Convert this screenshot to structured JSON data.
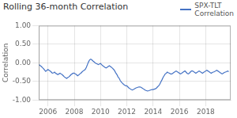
{
  "chart_data": {
    "type": "line",
    "title": "Rolling 36-month Correlation",
    "ylabel": "Correlation",
    "x": [
      2005.33,
      2005.42,
      2005.5,
      2005.58,
      2005.67,
      2005.75,
      2005.83,
      2005.92,
      2006.0,
      2006.08,
      2006.17,
      2006.25,
      2006.33,
      2006.42,
      2006.5,
      2006.58,
      2006.67,
      2006.75,
      2006.83,
      2006.92,
      2007.0,
      2007.08,
      2007.17,
      2007.25,
      2007.33,
      2007.42,
      2007.5,
      2007.58,
      2007.67,
      2007.75,
      2007.83,
      2007.92,
      2008.0,
      2008.08,
      2008.17,
      2008.25,
      2008.33,
      2008.42,
      2008.5,
      2008.58,
      2008.67,
      2008.75,
      2008.83,
      2008.92,
      2009.0,
      2009.08,
      2009.17,
      2009.25,
      2009.33,
      2009.42,
      2009.5,
      2009.58,
      2009.67,
      2009.75,
      2009.83,
      2009.92,
      2010.0,
      2010.08,
      2010.17,
      2010.25,
      2010.33,
      2010.42,
      2010.5,
      2010.58,
      2010.67,
      2010.75,
      2010.83,
      2010.92,
      2011.0,
      2011.08,
      2011.17,
      2011.25,
      2011.33,
      2011.42,
      2011.5,
      2011.58,
      2011.67,
      2011.75,
      2011.83,
      2011.92,
      2012.0,
      2012.08,
      2012.17,
      2012.25,
      2012.33,
      2012.42,
      2012.5,
      2012.58,
      2012.67,
      2012.75,
      2012.83,
      2012.92,
      2013.0,
      2013.08,
      2013.17,
      2013.25,
      2013.33,
      2013.42,
      2013.5,
      2013.58,
      2013.67,
      2013.75,
      2013.83,
      2013.92,
      2014.0,
      2014.08,
      2014.17,
      2014.25,
      2014.33,
      2014.42,
      2014.5,
      2014.58,
      2014.67,
      2014.75,
      2014.83,
      2014.92,
      2015.0,
      2015.08,
      2015.17,
      2015.25,
      2015.33,
      2015.42,
      2015.5,
      2015.58,
      2015.67,
      2015.75,
      2015.83,
      2015.92,
      2016.0,
      2016.08,
      2016.17,
      2016.25,
      2016.33,
      2016.42,
      2016.5,
      2016.58,
      2016.67,
      2016.75,
      2016.83,
      2016.92,
      2017.0,
      2017.08,
      2017.17,
      2017.25,
      2017.33,
      2017.42,
      2017.5,
      2017.58,
      2017.67,
      2017.75,
      2017.83,
      2017.92,
      2018.0,
      2018.08,
      2018.17,
      2018.25,
      2018.33,
      2018.42,
      2018.5,
      2018.58,
      2018.67,
      2018.75,
      2018.83,
      2018.92,
      2019.0,
      2019.08,
      2019.17,
      2019.25,
      2019.33,
      2019.42,
      2019.5,
      2019.58,
      2019.67,
      2019.75
    ],
    "series": [
      {
        "name": "SPX-TLT\nCorrelation",
        "color": "#4472C4",
        "values": [
          -0.05,
          -0.08,
          -0.1,
          -0.13,
          -0.16,
          -0.2,
          -0.23,
          -0.2,
          -0.18,
          -0.2,
          -0.22,
          -0.25,
          -0.28,
          -0.27,
          -0.25,
          -0.28,
          -0.3,
          -0.32,
          -0.3,
          -0.28,
          -0.3,
          -0.32,
          -0.35,
          -0.38,
          -0.4,
          -0.42,
          -0.4,
          -0.38,
          -0.35,
          -0.32,
          -0.3,
          -0.28,
          -0.28,
          -0.3,
          -0.32,
          -0.35,
          -0.33,
          -0.3,
          -0.28,
          -0.25,
          -0.22,
          -0.2,
          -0.18,
          -0.12,
          -0.05,
          0.02,
          0.08,
          0.1,
          0.08,
          0.05,
          0.03,
          0.0,
          -0.02,
          -0.03,
          -0.05,
          -0.03,
          -0.02,
          -0.05,
          -0.08,
          -0.1,
          -0.12,
          -0.14,
          -0.12,
          -0.1,
          -0.08,
          -0.1,
          -0.12,
          -0.15,
          -0.18,
          -0.22,
          -0.28,
          -0.32,
          -0.38,
          -0.42,
          -0.48,
          -0.52,
          -0.55,
          -0.58,
          -0.6,
          -0.62,
          -0.62,
          -0.65,
          -0.68,
          -0.7,
          -0.72,
          -0.73,
          -0.72,
          -0.7,
          -0.68,
          -0.67,
          -0.66,
          -0.65,
          -0.65,
          -0.66,
          -0.68,
          -0.7,
          -0.72,
          -0.74,
          -0.75,
          -0.76,
          -0.75,
          -0.74,
          -0.73,
          -0.72,
          -0.72,
          -0.71,
          -0.7,
          -0.68,
          -0.65,
          -0.62,
          -0.58,
          -0.52,
          -0.46,
          -0.4,
          -0.35,
          -0.3,
          -0.28,
          -0.25,
          -0.27,
          -0.28,
          -0.3,
          -0.3,
          -0.28,
          -0.26,
          -0.24,
          -0.22,
          -0.24,
          -0.26,
          -0.28,
          -0.3,
          -0.28,
          -0.26,
          -0.24,
          -0.22,
          -0.25,
          -0.28,
          -0.3,
          -0.28,
          -0.25,
          -0.22,
          -0.22,
          -0.24,
          -0.26,
          -0.28,
          -0.26,
          -0.24,
          -0.22,
          -0.24,
          -0.26,
          -0.28,
          -0.26,
          -0.24,
          -0.22,
          -0.2,
          -0.22,
          -0.24,
          -0.26,
          -0.28,
          -0.26,
          -0.25,
          -0.24,
          -0.22,
          -0.2,
          -0.22,
          -0.24,
          -0.26,
          -0.28,
          -0.3,
          -0.28,
          -0.26,
          -0.25,
          -0.24,
          -0.22,
          -0.24
        ]
      }
    ],
    "xlim": [
      2005.3,
      2019.9
    ],
    "xticks": [
      2006,
      2008,
      2010,
      2012,
      2014,
      2016,
      2018
    ],
    "ylim": [
      -1.0,
      1.0
    ],
    "yticks": [
      {
        "value": -1.0,
        "label": "-1.00"
      },
      {
        "value": -0.5,
        "label": "-0.50"
      },
      {
        "value": 0.0,
        "label": "0.00"
      },
      {
        "value": 0.5,
        "label": "0.50"
      },
      {
        "value": 1.0,
        "label": "1.00"
      }
    ],
    "grid": true,
    "legend": "upper right"
  }
}
